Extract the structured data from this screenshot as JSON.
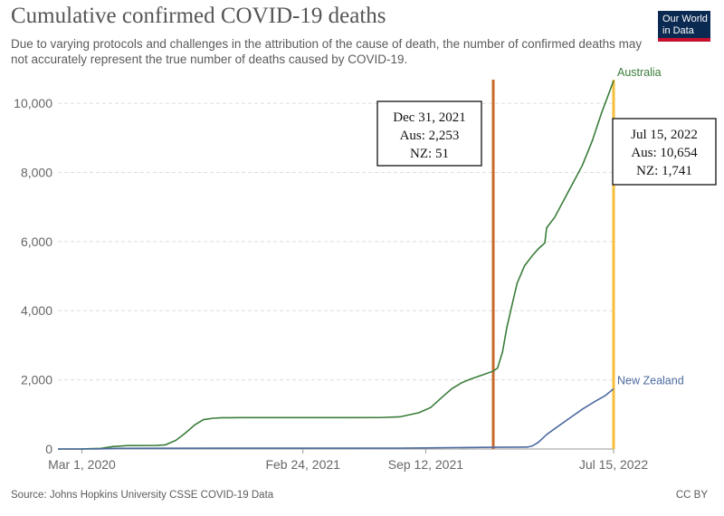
{
  "header": {
    "title": "Cumulative confirmed COVID-19 deaths",
    "subtitle": "Due to varying protocols and challenges in the attribution of the cause of death, the number of confirmed deaths may not accurately represent the true number of deaths caused by COVID-19."
  },
  "logo": {
    "line1": "Our World",
    "line2": "in Data",
    "bg": "#0b2a52",
    "accent": "#c8102e"
  },
  "footer": {
    "source": "Source: Johns Hopkins University CSSE COVID-19 Data",
    "license": "CC BY"
  },
  "chart_data": {
    "type": "line",
    "title": "Cumulative confirmed COVID-19 deaths",
    "xlabel": "",
    "ylabel": "",
    "ylim": [
      0,
      10500
    ],
    "xlim": [
      "2020-01-22",
      "2022-07-15"
    ],
    "grid": true,
    "y_ticks": [
      {
        "value": 0,
        "label": "0"
      },
      {
        "value": 2000,
        "label": "2,000"
      },
      {
        "value": 4000,
        "label": "4,000"
      },
      {
        "value": 6000,
        "label": "6,000"
      },
      {
        "value": 8000,
        "label": "8,000"
      },
      {
        "value": 10000,
        "label": "10,000"
      }
    ],
    "x_ticks": [
      {
        "date": "2020-03-01",
        "label": "Mar 1, 2020"
      },
      {
        "date": "2021-02-24",
        "label": "Feb 24, 2021"
      },
      {
        "date": "2021-09-12",
        "label": "Sep 12, 2021"
      },
      {
        "date": "2022-07-15",
        "label": "Jul 15, 2022"
      }
    ],
    "series": [
      {
        "name": "Australia",
        "color": "#3a7d3a",
        "points": [
          [
            "2020-01-22",
            0
          ],
          [
            "2020-03-01",
            1
          ],
          [
            "2020-04-01",
            18
          ],
          [
            "2020-04-20",
            70
          ],
          [
            "2020-05-15",
            100
          ],
          [
            "2020-06-30",
            104
          ],
          [
            "2020-07-15",
            120
          ],
          [
            "2020-08-01",
            250
          ],
          [
            "2020-08-15",
            440
          ],
          [
            "2020-09-01",
            700
          ],
          [
            "2020-09-15",
            850
          ],
          [
            "2020-10-01",
            890
          ],
          [
            "2020-10-15",
            905
          ],
          [
            "2020-11-15",
            907
          ],
          [
            "2021-06-30",
            910
          ],
          [
            "2021-08-01",
            930
          ],
          [
            "2021-09-01",
            1050
          ],
          [
            "2021-09-20",
            1200
          ],
          [
            "2021-10-10",
            1520
          ],
          [
            "2021-10-25",
            1750
          ],
          [
            "2021-11-10",
            1920
          ],
          [
            "2021-11-25",
            2030
          ],
          [
            "2021-12-10",
            2120
          ],
          [
            "2021-12-31",
            2253
          ],
          [
            "2022-01-07",
            2340
          ],
          [
            "2022-01-15",
            2800
          ],
          [
            "2022-01-22",
            3500
          ],
          [
            "2022-01-31",
            4200
          ],
          [
            "2022-02-08",
            4800
          ],
          [
            "2022-02-20",
            5300
          ],
          [
            "2022-03-05",
            5600
          ],
          [
            "2022-03-15",
            5800
          ],
          [
            "2022-03-25",
            5960
          ],
          [
            "2022-03-28",
            6400
          ],
          [
            "2022-04-10",
            6700
          ],
          [
            "2022-04-25",
            7200
          ],
          [
            "2022-05-10",
            7700
          ],
          [
            "2022-05-25",
            8200
          ],
          [
            "2022-06-10",
            8900
          ],
          [
            "2022-06-25",
            9700
          ],
          [
            "2022-07-15",
            10654
          ]
        ]
      },
      {
        "name": "New Zealand",
        "color": "#4c6aa0",
        "points": [
          [
            "2020-01-22",
            0
          ],
          [
            "2020-03-25",
            1
          ],
          [
            "2020-05-01",
            20
          ],
          [
            "2020-06-01",
            22
          ],
          [
            "2021-08-01",
            26
          ],
          [
            "2021-12-31",
            51
          ],
          [
            "2022-02-10",
            53
          ],
          [
            "2022-02-25",
            56
          ],
          [
            "2022-03-05",
            90
          ],
          [
            "2022-03-15",
            200
          ],
          [
            "2022-03-28",
            420
          ],
          [
            "2022-04-15",
            650
          ],
          [
            "2022-05-05",
            900
          ],
          [
            "2022-05-25",
            1150
          ],
          [
            "2022-06-15",
            1380
          ],
          [
            "2022-07-01",
            1540
          ],
          [
            "2022-07-15",
            1741
          ]
        ]
      }
    ],
    "markers": [
      {
        "date": "2021-12-31",
        "color": "#c96a2a",
        "lines": [
          "Dec 31, 2021",
          "Aus: 2,253",
          "NZ: 51"
        ]
      },
      {
        "date": "2022-07-15",
        "color": "#f5bf3c",
        "lines": [
          "Jul 15, 2022",
          "Aus: 10,654",
          "NZ: 1,741"
        ]
      }
    ]
  }
}
